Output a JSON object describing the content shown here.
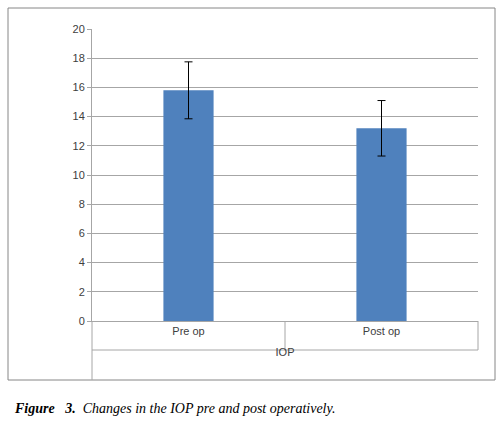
{
  "chart_data": {
    "type": "bar",
    "categories": [
      "Pre op",
      "Post op"
    ],
    "values": [
      15.8,
      13.2
    ],
    "error": [
      1.95,
      1.9
    ],
    "color": "#4f81bd",
    "xlabel": "IOP",
    "caption": {
      "label": "Figure   3.",
      "text": "Changes in the IOP pre and post operatively."
    },
    "ylim": [
      0,
      20
    ],
    "yticks": [
      0,
      2,
      4,
      6,
      8,
      10,
      12,
      14,
      16,
      18,
      20
    ],
    "grid": true
  }
}
